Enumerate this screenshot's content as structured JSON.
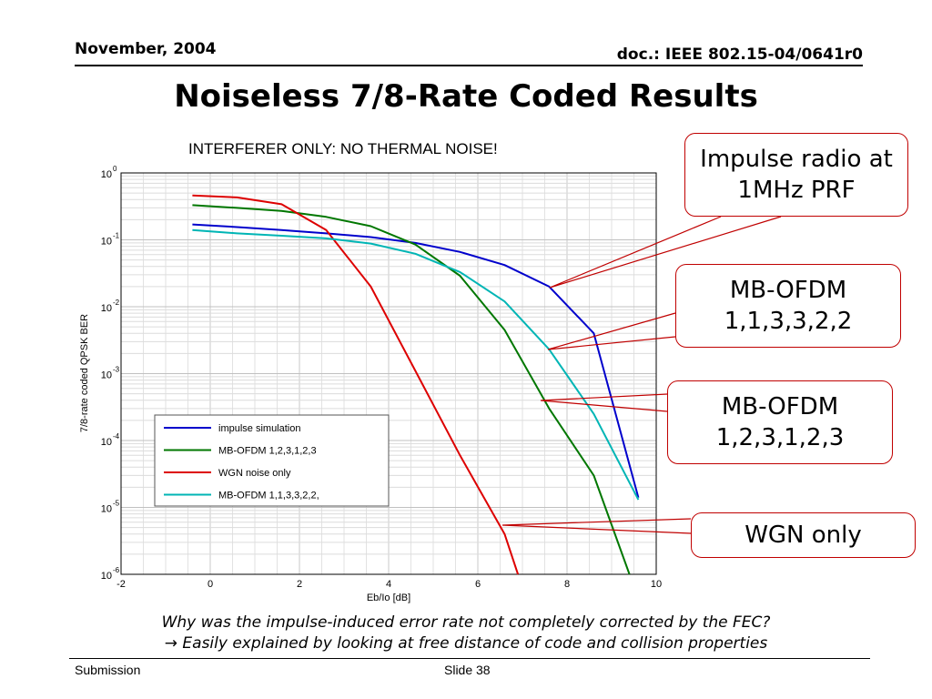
{
  "header": {
    "date": "November, 2004",
    "doc": "doc.: IEEE 802.15-04/0641r0"
  },
  "slide_title": "Noiseless 7/8-Rate Coded Results",
  "chart_data": {
    "type": "line",
    "title": "INTERFERER ONLY: NO THERMAL NOISE!",
    "xlabel": "Eb/Io [dB]",
    "ylabel": "7/8-rate coded QPSK BER",
    "xlim": [
      -2,
      10
    ],
    "ylim": [
      1e-06,
      1
    ],
    "yscale": "log",
    "grid": true,
    "legend_position": "lower-left",
    "xticks": [
      "-2",
      "0",
      "2",
      "4",
      "6",
      "8",
      "10"
    ],
    "yticks": [
      {
        "base": "10",
        "exp": "0"
      },
      {
        "base": "10",
        "exp": "-1"
      },
      {
        "base": "10",
        "exp": "-2"
      },
      {
        "base": "10",
        "exp": "-3"
      },
      {
        "base": "10",
        "exp": "-4"
      },
      {
        "base": "10",
        "exp": "-5"
      },
      {
        "base": "10",
        "exp": "-6"
      }
    ],
    "series": [
      {
        "name": "impulse simulation",
        "color": "#0000cc",
        "x": [
          -0.4,
          0.6,
          1.6,
          2.6,
          3.6,
          4.6,
          5.6,
          6.6,
          7.6,
          8.6,
          9.6
        ],
        "y": [
          0.17,
          0.155,
          0.14,
          0.125,
          0.11,
          0.09,
          0.066,
          0.042,
          0.02,
          0.004,
          1.4e-05
        ]
      },
      {
        "name": "MB-OFDM 1,2,3,1,2,3",
        "color": "#007700",
        "x": [
          -0.4,
          0.6,
          1.6,
          2.6,
          3.6,
          4.6,
          5.6,
          6.6,
          7.6,
          8.6,
          9.4
        ],
        "y": [
          0.33,
          0.3,
          0.27,
          0.22,
          0.16,
          0.085,
          0.029,
          0.0045,
          0.0003,
          3e-05,
          1e-06
        ]
      },
      {
        "name": "WGN noise only",
        "color": "#dd0000",
        "x": [
          -0.4,
          0.6,
          1.6,
          2.6,
          3.6,
          4.6,
          5.6,
          6.6,
          6.9
        ],
        "y": [
          0.46,
          0.43,
          0.34,
          0.14,
          0.02,
          0.0011,
          6e-05,
          4e-06,
          1e-06
        ]
      },
      {
        "name": "MB-OFDM 1,1,3,3,2,2,",
        "color": "#00b5b5",
        "x": [
          -0.4,
          0.6,
          1.6,
          2.6,
          3.6,
          4.6,
          5.6,
          6.6,
          7.6,
          8.6,
          9.6
        ],
        "y": [
          0.14,
          0.125,
          0.115,
          0.105,
          0.088,
          0.062,
          0.033,
          0.012,
          0.0023,
          0.00025,
          1.3e-05
        ]
      }
    ]
  },
  "callouts": [
    {
      "text": "Impulse radio at 1MHz PRF",
      "color": "#c00000"
    },
    {
      "text": "MB-OFDM 1,1,3,3,2,2",
      "color": "#c00000"
    },
    {
      "text": "MB-OFDM 1,2,3,1,2,3",
      "color": "#c00000"
    },
    {
      "text": "WGN only",
      "color": "#c00000"
    }
  ],
  "question": {
    "line1": "Why was the impulse-induced error rate not completely corrected by the FEC?",
    "arrow": "→",
    "line2": " Easily explained by looking at free distance of code and collision properties"
  },
  "footer": {
    "left": "Submission",
    "slide": "Slide 38"
  }
}
